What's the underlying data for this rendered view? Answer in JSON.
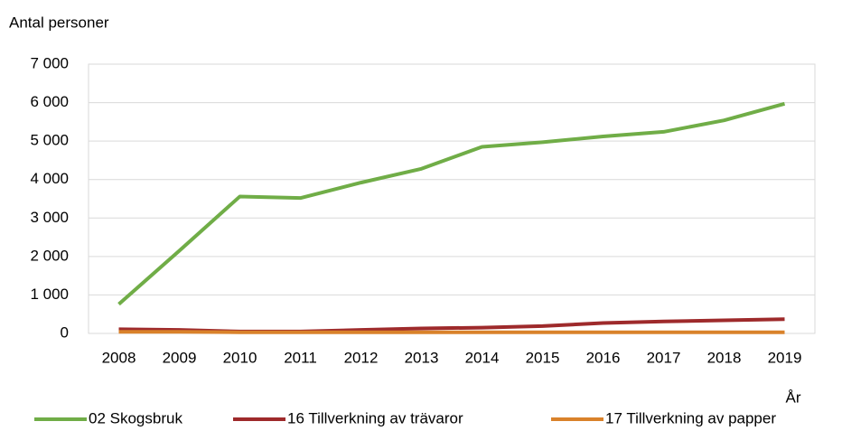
{
  "chart_data": {
    "type": "line",
    "y_axis_label": "Antal personer",
    "x_axis_label": "År",
    "categories": [
      "2008",
      "2009",
      "2010",
      "2011",
      "2012",
      "2013",
      "2014",
      "2015",
      "2016",
      "2017",
      "2018",
      "2019"
    ],
    "series": [
      {
        "name": "02 Skogsbruk",
        "color": "#70ad47",
        "values": [
          760,
          2150,
          3560,
          3520,
          3920,
          4280,
          4850,
          4970,
          5120,
          5240,
          5540,
          5970
        ]
      },
      {
        "name": "16 Tillverkning av trävaror",
        "color": "#9e2a2b",
        "values": [
          110,
          90,
          50,
          50,
          90,
          130,
          150,
          190,
          270,
          310,
          340,
          370
        ]
      },
      {
        "name": "17 Tillverkning av papper",
        "color": "#d9822b",
        "values": [
          40,
          40,
          30,
          30,
          30,
          30,
          30,
          30,
          30,
          30,
          30,
          30
        ]
      }
    ],
    "ylim": [
      0,
      7000
    ],
    "yticks": [
      0,
      {
        "value": 1000,
        "label": "1 000"
      },
      {
        "value": 2000,
        "label": "2 000"
      },
      {
        "value": 3000,
        "label": "3 000"
      },
      {
        "value": 4000,
        "label": "4 000"
      },
      {
        "value": 5000,
        "label": "5 000"
      },
      {
        "value": 6000,
        "label": "6 000"
      },
      {
        "value": 7000,
        "label": "7 000"
      }
    ],
    "grid": true
  }
}
